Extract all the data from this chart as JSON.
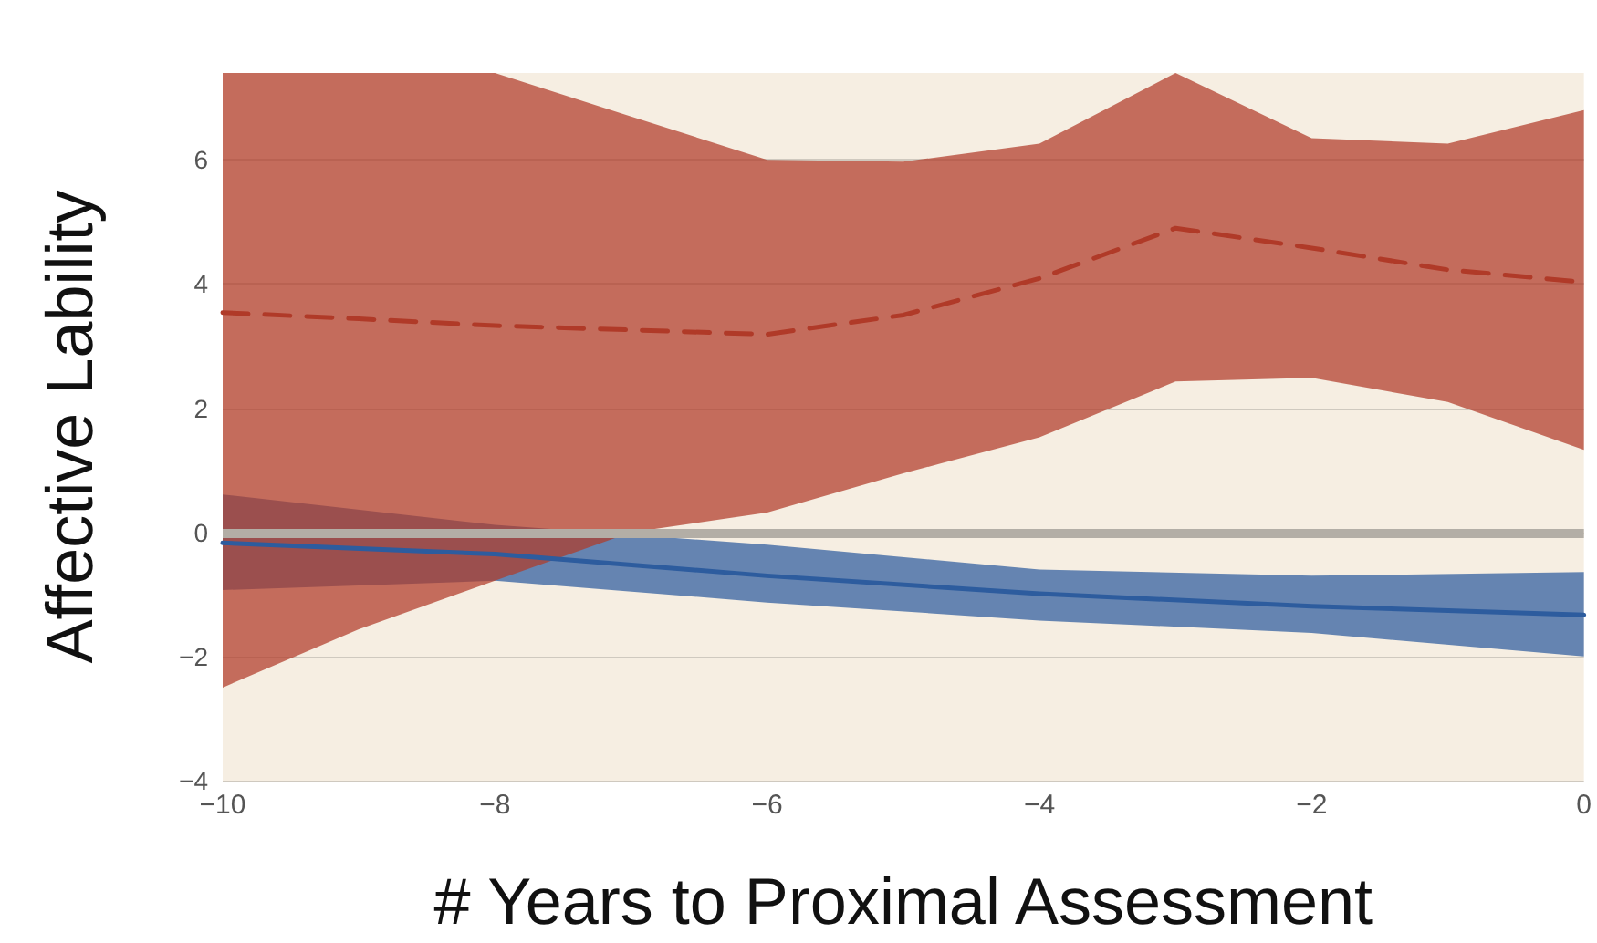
{
  "chart_data": {
    "type": "line",
    "xlabel": "# Years to Proximal Assessment",
    "ylabel": "Affective Lability",
    "xlim": [
      -10,
      0
    ],
    "ylim": [
      -4,
      7.4
    ],
    "xticks": [
      {
        "value": -10,
        "label": "−10"
      },
      {
        "value": -8,
        "label": "−8"
      },
      {
        "value": -6,
        "label": "−6"
      },
      {
        "value": -4,
        "label": "−4"
      },
      {
        "value": -2,
        "label": "−2"
      },
      {
        "value": 0,
        "label": "0"
      }
    ],
    "yticks": [
      {
        "value": -4,
        "label": "−4"
      },
      {
        "value": -2,
        "label": "−2"
      },
      0,
      2,
      4,
      6
    ],
    "grid": "y",
    "marker": "none",
    "ref_lines": [
      {
        "axis": "y",
        "value": 0,
        "color": "#b3aea6"
      }
    ],
    "series": [
      {
        "color": "#2d5c9e",
        "line_style": "solid",
        "x": [
          -10,
          -8,
          -6,
          -4,
          -2,
          0
        ],
        "values": [
          -0.17,
          -0.35,
          -0.7,
          -0.99,
          -1.19,
          -1.33
        ],
        "upper": [
          0.61,
          0.12,
          -0.2,
          -0.6,
          -0.7,
          -0.64
        ],
        "lower": [
          -0.93,
          -0.78,
          -1.13,
          -1.42,
          -1.62,
          -2.0
        ]
      },
      {
        "color": "#b03a28",
        "line_style": "dashed",
        "x": [
          -10,
          -9,
          -8,
          -7,
          -6,
          -5,
          -4,
          -3,
          -2,
          -1,
          0
        ],
        "values": [
          3.54,
          3.44,
          3.33,
          3.26,
          3.19,
          3.5,
          4.09,
          4.9,
          4.58,
          4.23,
          4.03
        ],
        "upper": [
          7.4,
          7.4,
          7.4,
          6.7,
          6.0,
          5.97,
          6.26,
          7.4,
          6.35,
          6.26,
          6.8
        ],
        "lower": [
          -2.5,
          -1.56,
          -0.78,
          0.0,
          0.32,
          0.95,
          1.53,
          2.43,
          2.49,
          2.1,
          1.33
        ]
      }
    ]
  }
}
